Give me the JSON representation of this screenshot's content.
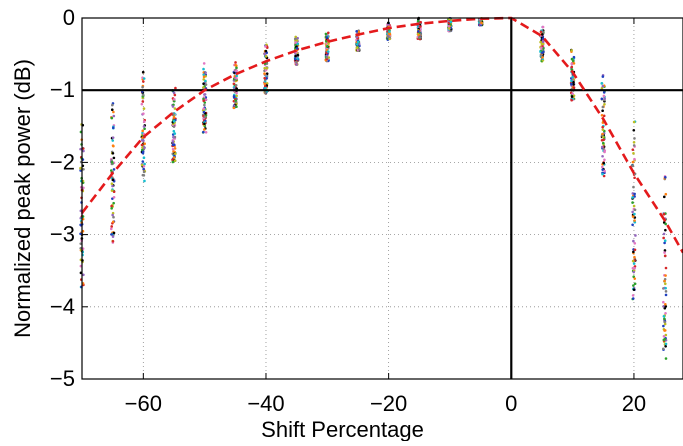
{
  "chart_data": {
    "type": "scatter",
    "title": "",
    "xlabel": "Shift Percentage",
    "ylabel": "Normalized peak power (dB)",
    "xlim": [
      -70,
      28
    ],
    "ylim": [
      -5,
      0
    ],
    "xticks": [
      {
        "value": -60,
        "label": "−60"
      },
      {
        "value": -40,
        "label": "−40"
      },
      {
        "value": -20,
        "label": "−20"
      },
      {
        "value": 0,
        "label": "0"
      },
      {
        "value": 20,
        "label": "20"
      }
    ],
    "yticks": [
      {
        "value": 0,
        "label": "0"
      },
      {
        "value": -1,
        "label": "−1"
      },
      {
        "value": -2,
        "label": "−2"
      },
      {
        "value": -3,
        "label": "−3"
      },
      {
        "value": -4,
        "label": "−4"
      },
      {
        "value": -5,
        "label": "−5"
      }
    ],
    "grid": true,
    "grid_style": "dotted",
    "reference_lines": [
      {
        "orientation": "horizontal",
        "value": -1,
        "color": "#000000"
      },
      {
        "orientation": "vertical",
        "value": 0,
        "color": "#000000"
      }
    ],
    "marker_colors": [
      "#1f3fbf",
      "#d62728",
      "#2ca02c",
      "#17becf",
      "#e377c2",
      "#bcbd22",
      "#7f7f7f",
      "#9467bd",
      "#ff7f0e",
      "#000000"
    ],
    "scatter_groups": [
      {
        "x": -70,
        "min": -3.8,
        "max": -1.4
      },
      {
        "x": -65,
        "min": -3.15,
        "max": -1.0
      },
      {
        "x": -60,
        "min": -2.3,
        "max": -0.75
      },
      {
        "x": -55,
        "min": -2.0,
        "max": -0.95
      },
      {
        "x": -50,
        "min": -1.6,
        "max": -0.55
      },
      {
        "x": -45,
        "min": -1.25,
        "max": -0.6
      },
      {
        "x": -40,
        "min": -1.05,
        "max": -0.35
      },
      {
        "x": -35,
        "min": -0.65,
        "max": -0.25
      },
      {
        "x": -30,
        "min": -0.6,
        "max": -0.2
      },
      {
        "x": -25,
        "min": -0.45,
        "max": -0.15
      },
      {
        "x": -20,
        "min": -0.3,
        "max": -0.05
      },
      {
        "x": -15,
        "min": -0.3,
        "max": 0.0
      },
      {
        "x": -10,
        "min": -0.18,
        "max": 0.0
      },
      {
        "x": -5,
        "min": -0.1,
        "max": 0.0
      },
      {
        "x": 5,
        "min": -0.6,
        "max": -0.1
      },
      {
        "x": 10,
        "min": -1.15,
        "max": -0.4
      },
      {
        "x": 15,
        "min": -2.2,
        "max": -0.7
      },
      {
        "x": 20,
        "min": -3.95,
        "max": -1.35
      },
      {
        "x": 25,
        "min": -4.75,
        "max": -1.95
      }
    ],
    "fit_curve": {
      "name": "",
      "color": "#e41a1c",
      "dash": "dashed",
      "x": [
        -70,
        -65,
        -60,
        -55,
        -50,
        -45,
        -40,
        -35,
        -30,
        -25,
        -20,
        -15,
        -10,
        -5,
        0,
        5,
        10,
        15,
        20,
        25,
        28
      ],
      "y": [
        -2.7,
        -2.15,
        -1.65,
        -1.3,
        -1.0,
        -0.78,
        -0.6,
        -0.45,
        -0.33,
        -0.23,
        -0.14,
        -0.08,
        -0.04,
        -0.01,
        0.0,
        -0.25,
        -0.75,
        -1.4,
        -2.15,
        -2.8,
        -3.25
      ]
    }
  }
}
